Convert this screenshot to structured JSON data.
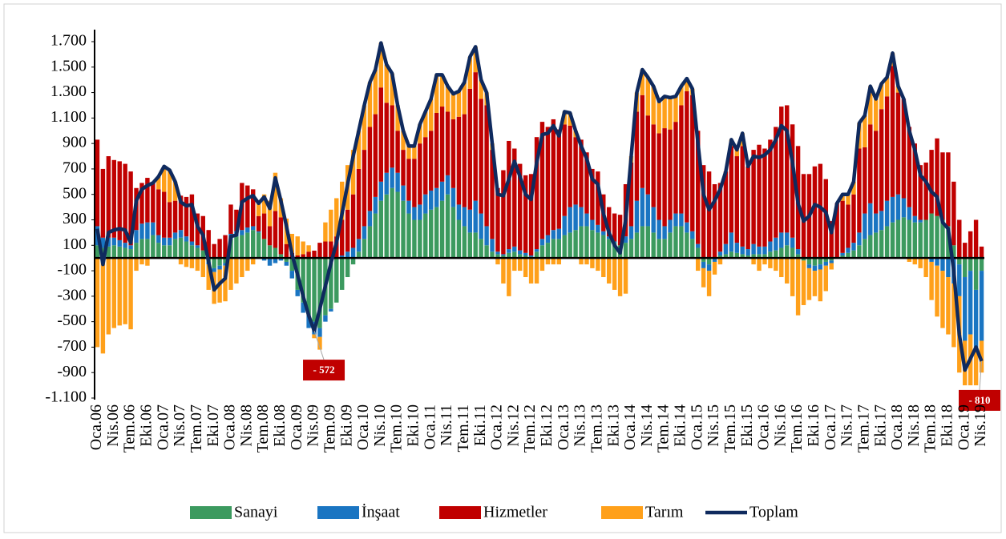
{
  "chart_data": {
    "type": "bar",
    "stacked": true,
    "categories": [
      "Oca.06",
      null,
      null,
      "Nis.06",
      null,
      null,
      "Tem.06",
      null,
      null,
      "Eki.06",
      null,
      null,
      "Oca.07",
      null,
      null,
      "Nis.07",
      null,
      null,
      "Tem.07",
      null,
      null,
      "Eki.07",
      null,
      null,
      "Oca.08",
      null,
      null,
      "Nis.08",
      null,
      null,
      "Tem.08",
      null,
      null,
      "Eki.08",
      null,
      null,
      "Oca.09",
      null,
      null,
      "Nis.09",
      null,
      null,
      "Tem.09",
      null,
      null,
      "Eki.09",
      null,
      null,
      "Oca.10",
      null,
      null,
      "Nis.10",
      null,
      null,
      "Tem.10",
      null,
      null,
      "Eki.10",
      null,
      null,
      "Oca.11",
      null,
      null,
      "Nis.11",
      null,
      null,
      "Tem.11",
      null,
      null,
      "Eki.11",
      null,
      null,
      "Oca.12",
      null,
      null,
      "Nis.12",
      null,
      null,
      "Tem.12",
      null,
      null,
      "Eki.12",
      null,
      null,
      "Oca.13",
      null,
      null,
      "Nis.13",
      null,
      null,
      "Tem.13",
      null,
      null,
      "Eki.13",
      null,
      null,
      "Oca.14",
      null,
      null,
      "Nis.14",
      null,
      null,
      "Tem.14",
      null,
      null,
      "Eki.14",
      null,
      null,
      "Oca.15",
      null,
      null,
      "Nis.15",
      null,
      null,
      "Tem.15",
      null,
      null,
      "Eki.15",
      null,
      null,
      "Oca.16",
      null,
      null,
      "Nis.16",
      null,
      null,
      "Tem.16",
      null,
      null,
      "Eki.16",
      null,
      null,
      "Oca.17",
      null,
      null,
      "Nis.17",
      null,
      null,
      "Tem.17",
      null,
      null,
      "Eki.17",
      null,
      null,
      "Oca.18",
      null,
      null,
      "Nis.18",
      null,
      null,
      "Tem.18",
      null,
      null,
      "Eki.18",
      null,
      null,
      "Oca.19",
      null,
      null,
      "Nis.19"
    ],
    "series": [
      {
        "name": "Sanayi",
        "color": "#3c9a5f",
        "values": [
          100,
          80,
          90,
          100,
          90,
          80,
          70,
          120,
          150,
          150,
          180,
          120,
          100,
          100,
          150,
          160,
          130,
          100,
          80,
          60,
          -30,
          -80,
          -60,
          -40,
          150,
          170,
          180,
          200,
          220,
          200,
          150,
          100,
          80,
          30,
          -30,
          -100,
          -250,
          -350,
          -450,
          -500,
          -550,
          -450,
          -400,
          -350,
          -250,
          -150,
          -50,
          50,
          150,
          250,
          350,
          450,
          500,
          550,
          520,
          450,
          350,
          300,
          300,
          350,
          380,
          400,
          450,
          500,
          400,
          300,
          250,
          200,
          200,
          150,
          100,
          50,
          30,
          20,
          40,
          50,
          30,
          20,
          10,
          50,
          100,
          120,
          150,
          150,
          180,
          200,
          220,
          250,
          250,
          220,
          200,
          180,
          150,
          120,
          100,
          120,
          150,
          200,
          250,
          250,
          200,
          150,
          150,
          200,
          250,
          250,
          200,
          150,
          80,
          -30,
          -50,
          0,
          20,
          30,
          50,
          40,
          30,
          20,
          30,
          30,
          30,
          50,
          60,
          80,
          100,
          80,
          30,
          -20,
          -50,
          -60,
          -50,
          -30,
          -20,
          0,
          20,
          40,
          60,
          100,
          150,
          180,
          200,
          220,
          250,
          280,
          300,
          320,
          300,
          280,
          280,
          300,
          350,
          330,
          300,
          250,
          100,
          -50,
          -150,
          -100,
          -250,
          -100
        ]
      },
      {
        "name": "İnşaat",
        "color": "#1a75c2",
        "values": [
          150,
          80,
          70,
          60,
          50,
          40,
          30,
          100,
          120,
          130,
          100,
          60,
          60,
          60,
          50,
          60,
          40,
          30,
          20,
          0,
          -20,
          -30,
          -30,
          -20,
          40,
          40,
          40,
          40,
          30,
          10,
          -20,
          -60,
          -40,
          -20,
          -30,
          -60,
          -50,
          -80,
          -100,
          -100,
          -70,
          -50,
          -20,
          0,
          20,
          50,
          80,
          100,
          100,
          120,
          130,
          150,
          170,
          160,
          150,
          120,
          100,
          100,
          120,
          150,
          150,
          150,
          150,
          150,
          150,
          120,
          150,
          180,
          250,
          200,
          150,
          100,
          20,
          10,
          30,
          40,
          30,
          20,
          10,
          20,
          50,
          60,
          70,
          80,
          150,
          200,
          200,
          150,
          100,
          80,
          60,
          30,
          20,
          10,
          0,
          50,
          100,
          250,
          300,
          250,
          200,
          150,
          100,
          100,
          100,
          100,
          80,
          60,
          30,
          -50,
          -50,
          -30,
          30,
          80,
          150,
          80,
          60,
          50,
          80,
          60,
          60,
          80,
          100,
          120,
          100,
          80,
          40,
          0,
          -30,
          -40,
          -40,
          -30,
          -20,
          0,
          20,
          40,
          60,
          100,
          200,
          250,
          150,
          150,
          200,
          200,
          200,
          150,
          100,
          50,
          20,
          0,
          -30,
          -60,
          -100,
          -150,
          -200,
          -250,
          -500,
          -500,
          -450,
          -550
        ]
      },
      {
        "name": "Hizmetler",
        "color": "#c00000",
        "values": [
          680,
          540,
          640,
          610,
          620,
          620,
          580,
          330,
          320,
          350,
          310,
          360,
          360,
          280,
          250,
          270,
          310,
          370,
          250,
          270,
          220,
          110,
          150,
          180,
          230,
          170,
          370,
          330,
          290,
          120,
          200,
          150,
          290,
          290,
          110,
          40,
          20,
          30,
          50,
          58,
          120,
          130,
          130,
          170,
          280,
          330,
          420,
          550,
          600,
          660,
          650,
          740,
          550,
          490,
          330,
          280,
          330,
          380,
          480,
          450,
          470,
          590,
          590,
          500,
          540,
          690,
          730,
          950,
          1010,
          900,
          950,
          700,
          500,
          660,
          850,
          770,
          680,
          610,
          640,
          880,
          920,
          850,
          870,
          780,
          720,
          640,
          530,
          530,
          480,
          400,
          420,
          290,
          230,
          220,
          240,
          410,
          500,
          700,
          730,
          620,
          650,
          680,
          770,
          710,
          720,
          850,
          1030,
          1070,
          890,
          730,
          680,
          580,
          540,
          570,
          680,
          680,
          790,
          650,
          740,
          800,
          770,
          800,
          870,
          990,
          1000,
          890,
          810,
          660,
          660,
          720,
          740,
          620,
          290,
          430,
          410,
          340,
          380,
          660,
          520,
          620,
          650,
          800,
          820,
          1030,
          800,
          780,
          630,
          570,
          430,
          450,
          500,
          610,
          530,
          580,
          500,
          300,
          120,
          210,
          300,
          90
        ]
      },
      {
        "name": "Tarım",
        "color": "#ffa01a",
        "values": [
          -700,
          -750,
          -600,
          -550,
          -530,
          -520,
          -560,
          -100,
          -50,
          -60,
          0,
          100,
          200,
          250,
          150,
          -50,
          -70,
          -80,
          -100,
          -150,
          -200,
          -250,
          -260,
          -280,
          -250,
          -200,
          -150,
          -100,
          -50,
          100,
          150,
          200,
          300,
          150,
          200,
          150,
          150,
          100,
          50,
          -30,
          -100,
          150,
          250,
          300,
          300,
          350,
          350,
          300,
          350,
          350,
          350,
          350,
          300,
          250,
          200,
          150,
          100,
          100,
          150,
          200,
          250,
          300,
          250,
          200,
          200,
          200,
          250,
          250,
          200,
          150,
          100,
          50,
          -50,
          -200,
          -300,
          -100,
          -100,
          -150,
          -200,
          -200,
          -100,
          -50,
          -50,
          -50,
          100,
          100,
          50,
          -50,
          -50,
          -80,
          -100,
          -150,
          -200,
          -250,
          -300,
          -280,
          50,
          150,
          200,
          300,
          300,
          250,
          250,
          250,
          200,
          150,
          100,
          50,
          -100,
          -150,
          -200,
          -100,
          -50,
          0,
          50,
          50,
          100,
          0,
          -50,
          -100,
          -50,
          -80,
          -100,
          -150,
          -200,
          -300,
          -450,
          -350,
          -250,
          -200,
          -250,
          -200,
          -50,
          0,
          50,
          80,
          100,
          200,
          250,
          300,
          250,
          200,
          150,
          100,
          50,
          0,
          -30,
          -50,
          -80,
          -150,
          -300,
          -400,
          -450,
          -450,
          -500,
          -600,
          -350,
          -400,
          -300,
          -250
        ]
      },
      {
        "name": "Toplam",
        "color": "#0f2a5e",
        "type": "line",
        "values": [
          230,
          -50,
          200,
          220,
          230,
          220,
          120,
          450,
          540,
          570,
          590,
          640,
          720,
          690,
          600,
          440,
          410,
          420,
          250,
          180,
          -30,
          -250,
          -200,
          -160,
          170,
          180,
          440,
          470,
          490,
          430,
          480,
          390,
          630,
          450,
          250,
          30,
          -130,
          -300,
          -450,
          -572,
          -400,
          -220,
          -40,
          120,
          350,
          580,
          800,
          1000,
          1200,
          1380,
          1480,
          1690,
          1520,
          1450,
          1200,
          1000,
          880,
          880,
          1050,
          1150,
          1250,
          1440,
          1440,
          1350,
          1290,
          1310,
          1380,
          1580,
          1660,
          1400,
          1300,
          900,
          500,
          490,
          620,
          760,
          640,
          500,
          460,
          750,
          970,
          980,
          1040,
          960,
          1150,
          1140,
          1000,
          880,
          780,
          620,
          580,
          350,
          200,
          100,
          40,
          300,
          800,
          1300,
          1480,
          1420,
          1350,
          1230,
          1270,
          1260,
          1270,
          1350,
          1410,
          1330,
          900,
          500,
          380,
          450,
          540,
          680,
          930,
          850,
          980,
          720,
          800,
          790,
          810,
          850,
          930,
          1040,
          1000,
          750,
          430,
          290,
          330,
          420,
          400,
          360,
          200,
          430,
          500,
          500,
          600,
          1060,
          1120,
          1350,
          1250,
          1370,
          1420,
          1610,
          1350,
          1250,
          1000,
          850,
          650,
          600,
          520,
          480,
          280,
          230,
          -100,
          -600,
          -880,
          -790,
          -700,
          -810
        ],
        "value_labels": [
          null,
          null,
          null,
          null,
          null,
          null,
          null,
          null,
          null,
          null,
          null,
          null,
          null,
          null,
          null,
          null,
          null,
          null,
          null,
          null,
          null,
          null,
          null,
          null,
          null,
          null,
          null,
          null,
          null,
          null,
          null,
          null,
          null,
          null,
          null,
          null,
          null,
          null,
          null,
          "- 572",
          null,
          null,
          null,
          null,
          null,
          null,
          null,
          null,
          null,
          null,
          null,
          null,
          null,
          null,
          null,
          null,
          null,
          null,
          null,
          null,
          null,
          null,
          null,
          null,
          null,
          null,
          null,
          null,
          null,
          null,
          null,
          null,
          null,
          null,
          null,
          null,
          null,
          null,
          null,
          null,
          null,
          null,
          null,
          null,
          null,
          null,
          null,
          null,
          null,
          null,
          null,
          null,
          null,
          null,
          null,
          null,
          null,
          null,
          null,
          null,
          null,
          null,
          null,
          null,
          null,
          null,
          null,
          null,
          null,
          null,
          null,
          null,
          null,
          null,
          null,
          null,
          null,
          null,
          null,
          null,
          null,
          null,
          null,
          null,
          null,
          null,
          null,
          null,
          null,
          null,
          null,
          null,
          null,
          null,
          null,
          null,
          null,
          null,
          null,
          null,
          null,
          null,
          null,
          null,
          null,
          null,
          null,
          null,
          null,
          null,
          null,
          null,
          null,
          null,
          null,
          null,
          null,
          null,
          null,
          "- 810"
        ]
      }
    ],
    "ylim": [
      -1100,
      1700
    ],
    "yticks": [
      {
        "value": 1700,
        "label": "1.700"
      },
      {
        "value": 1500,
        "label": "1.500"
      },
      {
        "value": 1300,
        "label": "1.300"
      },
      {
        "value": 1100,
        "label": "1.100"
      },
      900,
      700,
      500,
      300,
      100,
      -100,
      -300,
      -500,
      -700,
      -900,
      {
        "value": -1100,
        "label": "-1.100"
      }
    ],
    "grid": false,
    "legend": "bottom"
  }
}
